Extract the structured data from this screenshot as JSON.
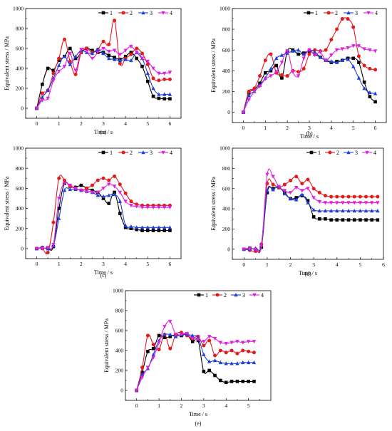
{
  "figure": {
    "colors": {
      "1": "#000000",
      "2": "#e41a1c",
      "3": "#1f3fd6",
      "4": "#e020e0"
    },
    "markers": {
      "1": "square",
      "2": "circle",
      "3": "triangle-up",
      "4": "triangle-down"
    },
    "legend_placement": "top-right"
  },
  "chart_data": [
    {
      "type": "line",
      "panel_label": "(a)",
      "xlabel": "Time / s",
      "ylabel": "Equivalent stress / MPa",
      "xlim": [
        -0.5,
        6.5
      ],
      "ylim": [
        -100,
        1000
      ],
      "xticks": [
        0,
        1,
        2,
        3,
        4,
        5,
        6
      ],
      "yticks": [
        0,
        200,
        400,
        600,
        800,
        1000
      ],
      "grid": false,
      "legend": "top-right",
      "x": [
        0,
        0.25,
        0.5,
        0.75,
        1.0,
        1.25,
        1.5,
        1.75,
        2.0,
        2.25,
        2.5,
        2.75,
        3.0,
        3.25,
        3.5,
        3.75,
        4.0,
        4.25,
        4.5,
        4.75,
        5.0,
        5.25,
        5.5,
        5.75,
        6.0
      ],
      "series": [
        {
          "name": "1",
          "values": [
            0,
            240,
            400,
            380,
            480,
            520,
            600,
            500,
            560,
            600,
            580,
            560,
            560,
            530,
            510,
            490,
            520,
            560,
            500,
            420,
            270,
            120,
            100,
            95,
            95
          ]
        },
        {
          "name": "2",
          "values": [
            0,
            150,
            180,
            350,
            500,
            690,
            470,
            340,
            560,
            600,
            560,
            590,
            670,
            640,
            880,
            450,
            500,
            540,
            600,
            550,
            440,
            300,
            280,
            290,
            290
          ]
        },
        {
          "name": "3",
          "values": [
            0,
            110,
            180,
            300,
            430,
            520,
            440,
            520,
            580,
            560,
            550,
            590,
            550,
            500,
            490,
            480,
            490,
            480,
            560,
            500,
            350,
            200,
            140,
            140,
            140
          ]
        },
        {
          "name": "4",
          "values": [
            0,
            80,
            100,
            280,
            370,
            420,
            550,
            380,
            590,
            570,
            500,
            560,
            600,
            570,
            580,
            540,
            580,
            620,
            560,
            500,
            470,
            400,
            350,
            350,
            360
          ]
        }
      ]
    },
    {
      "type": "line",
      "panel_label": "(b)",
      "xlabel": "Time / s",
      "ylabel": "Equivalent stress / MPa",
      "xlim": [
        -0.5,
        6.5
      ],
      "ylim": [
        -100,
        1000
      ],
      "xticks": [
        0,
        1,
        2,
        3,
        4,
        5,
        6
      ],
      "yticks": [
        0,
        200,
        400,
        600,
        800,
        1000
      ],
      "grid": false,
      "legend": "top-right",
      "x": [
        0,
        0.25,
        0.5,
        0.75,
        1.0,
        1.25,
        1.5,
        1.75,
        2.0,
        2.25,
        2.5,
        2.75,
        3.0,
        3.25,
        3.5,
        3.75,
        4.0,
        4.25,
        4.5,
        4.75,
        5.0,
        5.25,
        5.5,
        5.75,
        6.0
      ],
      "series": [
        {
          "name": "1",
          "values": [
            0,
            180,
            220,
            280,
            380,
            400,
            450,
            330,
            590,
            600,
            560,
            570,
            590,
            560,
            530,
            500,
            480,
            490,
            500,
            520,
            520,
            480,
            290,
            150,
            100
          ]
        },
        {
          "name": "2",
          "values": [
            0,
            200,
            230,
            350,
            500,
            560,
            380,
            360,
            350,
            400,
            390,
            420,
            560,
            600,
            590,
            600,
            700,
            800,
            900,
            900,
            820,
            540,
            450,
            420,
            410
          ]
        },
        {
          "name": "3",
          "values": [
            0,
            160,
            200,
            260,
            330,
            420,
            520,
            550,
            570,
            590,
            600,
            560,
            600,
            580,
            530,
            500,
            490,
            480,
            500,
            510,
            440,
            330,
            230,
            190,
            180
          ]
        },
        {
          "name": "4",
          "values": [
            0,
            120,
            200,
            250,
            320,
            350,
            390,
            480,
            590,
            390,
            350,
            520,
            600,
            550,
            580,
            500,
            550,
            600,
            610,
            620,
            640,
            640,
            610,
            600,
            590
          ]
        }
      ]
    },
    {
      "type": "line",
      "panel_label": "(c)",
      "xlabel": "Time / s",
      "ylabel": "Equivalent stress / MPa",
      "xlim": [
        -0.5,
        6.5
      ],
      "ylim": [
        -100,
        1000
      ],
      "xticks": [
        0,
        1,
        2,
        3,
        4,
        5,
        6
      ],
      "yticks": [
        0,
        200,
        400,
        600,
        800,
        1000
      ],
      "grid": false,
      "legend": "top-right",
      "x": [
        0,
        0.25,
        0.5,
        0.75,
        1.0,
        1.25,
        1.5,
        1.75,
        2.0,
        2.25,
        2.5,
        2.75,
        3.0,
        3.25,
        3.5,
        3.75,
        4.0,
        4.25,
        4.5,
        4.75,
        5.0,
        5.25,
        5.5,
        5.75,
        6.0
      ],
      "series": [
        {
          "name": "1",
          "values": [
            0,
            10,
            0,
            20,
            400,
            650,
            620,
            610,
            630,
            600,
            580,
            560,
            500,
            450,
            560,
            350,
            210,
            200,
            190,
            180,
            180,
            180,
            180,
            180,
            180
          ]
        },
        {
          "name": "2",
          "values": [
            0,
            0,
            -40,
            260,
            700,
            680,
            620,
            600,
            580,
            600,
            630,
            680,
            700,
            680,
            720,
            640,
            550,
            470,
            440,
            430,
            430,
            430,
            430,
            430,
            430
          ]
        },
        {
          "name": "3",
          "values": [
            0,
            10,
            0,
            30,
            300,
            580,
            590,
            590,
            580,
            570,
            560,
            530,
            520,
            530,
            540,
            470,
            230,
            220,
            210,
            210,
            210,
            210,
            210,
            210,
            210
          ]
        },
        {
          "name": "4",
          "values": [
            0,
            5,
            10,
            40,
            500,
            650,
            630,
            600,
            580,
            570,
            560,
            560,
            600,
            640,
            620,
            560,
            470,
            430,
            420,
            410,
            410,
            410,
            410,
            410,
            410
          ]
        }
      ]
    },
    {
      "type": "line",
      "panel_label": "(d)",
      "xlabel": "Time / s",
      "ylabel": "Equivalent stress / MPa",
      "xlim": [
        -0.5,
        6
      ],
      "ylim": [
        -100,
        1000
      ],
      "xticks": [
        0,
        1,
        2,
        3,
        4,
        5,
        6
      ],
      "yticks": [
        0,
        200,
        400,
        600,
        800,
        1000
      ],
      "grid": false,
      "legend": "top-right",
      "x": [
        0,
        0.25,
        0.5,
        0.75,
        1.0,
        1.25,
        1.5,
        1.75,
        2.0,
        2.25,
        2.5,
        2.75,
        3.0,
        3.25,
        3.5,
        3.75,
        4.0,
        4.25,
        4.5,
        4.75,
        5.0,
        5.25,
        5.5,
        5.75
      ],
      "series": [
        {
          "name": "1",
          "values": [
            0,
            10,
            0,
            20,
            560,
            600,
            610,
            560,
            500,
            510,
            530,
            480,
            320,
            300,
            300,
            290,
            290,
            290,
            290,
            290,
            290,
            290,
            290,
            290
          ]
        },
        {
          "name": "2",
          "values": [
            0,
            -10,
            -20,
            50,
            650,
            640,
            610,
            640,
            680,
            720,
            650,
            690,
            600,
            560,
            530,
            520,
            520,
            520,
            520,
            520,
            520,
            520,
            520,
            520
          ]
        },
        {
          "name": "3",
          "values": [
            0,
            0,
            10,
            40,
            580,
            590,
            620,
            550,
            500,
            490,
            540,
            460,
            390,
            380,
            380,
            380,
            380,
            380,
            380,
            380,
            380,
            380,
            380,
            380
          ]
        },
        {
          "name": "4",
          "values": [
            0,
            5,
            0,
            30,
            740,
            720,
            620,
            580,
            560,
            610,
            580,
            600,
            510,
            470,
            460,
            460,
            460,
            460,
            460,
            460,
            460,
            460,
            460,
            460
          ]
        }
      ]
    },
    {
      "type": "line",
      "panel_label": "(e)",
      "xlabel": "Time / s",
      "ylabel": "Equivalent stress / MPa",
      "xlim": [
        -0.5,
        6
      ],
      "ylim": [
        -100,
        1000
      ],
      "xticks": [
        0,
        1,
        2,
        3,
        4,
        5
      ],
      "yticks": [
        0,
        200,
        400,
        600,
        800,
        1000
      ],
      "grid": false,
      "legend": "top-right",
      "x": [
        0,
        0.25,
        0.5,
        0.75,
        1.0,
        1.25,
        1.5,
        1.75,
        2.0,
        2.25,
        2.5,
        2.75,
        3.0,
        3.25,
        3.5,
        3.75,
        4.0,
        4.25,
        4.5,
        4.75,
        5.0,
        5.25
      ],
      "series": [
        {
          "name": "1",
          "values": [
            0,
            180,
            390,
            420,
            550,
            530,
            540,
            560,
            550,
            560,
            490,
            500,
            190,
            200,
            150,
            100,
            80,
            90,
            90,
            90,
            90,
            90
          ]
        },
        {
          "name": "2",
          "values": [
            0,
            230,
            550,
            460,
            410,
            560,
            420,
            560,
            580,
            550,
            520,
            540,
            450,
            500,
            350,
            400,
            380,
            400,
            370,
            400,
            390,
            380
          ]
        },
        {
          "name": "3",
          "values": [
            0,
            160,
            220,
            360,
            500,
            560,
            560,
            540,
            560,
            560,
            550,
            530,
            360,
            290,
            300,
            280,
            270,
            270,
            270,
            280,
            280,
            280
          ]
        },
        {
          "name": "4",
          "values": [
            0,
            130,
            230,
            330,
            480,
            640,
            690,
            560,
            560,
            570,
            520,
            510,
            490,
            540,
            520,
            480,
            470,
            480,
            490,
            480,
            490,
            490
          ]
        }
      ]
    }
  ]
}
